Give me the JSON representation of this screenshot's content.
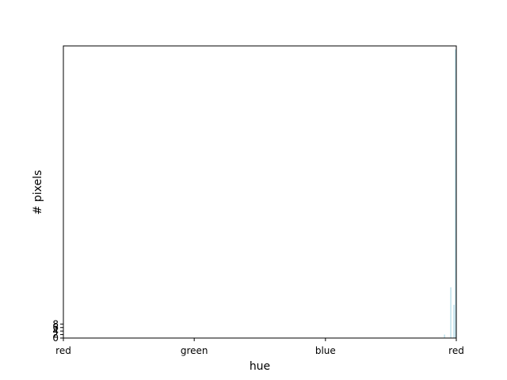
{
  "chart_data": {
    "type": "bar",
    "title": "",
    "xlabel": "hue",
    "ylabel": "# pixels",
    "xlim": [
      0,
      1
    ],
    "ylim": [
      0,
      167
    ],
    "x_ticks": [
      {
        "value": 0.0,
        "label": "red"
      },
      {
        "value": 0.333,
        "label": "green"
      },
      {
        "value": 0.667,
        "label": "blue"
      },
      {
        "value": 1.0,
        "label": "red"
      }
    ],
    "y_ticks": [
      {
        "value": 0,
        "label": "0"
      },
      {
        "value": 2,
        "label": "2"
      },
      {
        "value": 4,
        "label": "4"
      },
      {
        "value": 6,
        "label": "6"
      },
      {
        "value": 8,
        "label": "8"
      }
    ],
    "bar_color": "#add8e6",
    "bars": [
      {
        "x": 0.97,
        "value": 2
      },
      {
        "x": 0.986,
        "value": 29
      },
      {
        "x": 0.994,
        "value": 19
      },
      {
        "x": 0.998,
        "value": 165
      }
    ]
  }
}
